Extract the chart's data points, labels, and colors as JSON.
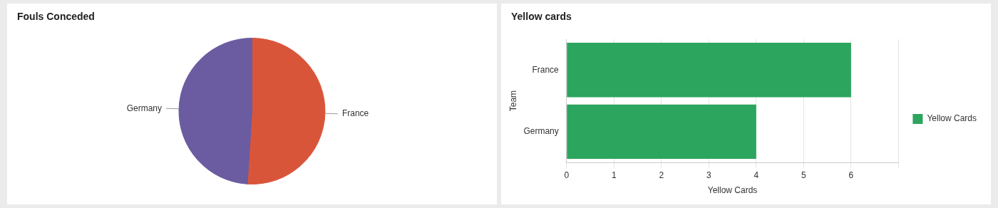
{
  "chart_data": [
    {
      "type": "pie",
      "title": "Fouls Conceded",
      "categories": [
        "France",
        "Germany"
      ],
      "values": [
        51,
        49
      ],
      "colors": [
        "#d9553a",
        "#6b5ba0"
      ]
    },
    {
      "type": "bar",
      "title": "Yellow cards",
      "orientation": "horizontal",
      "categories": [
        "France",
        "Germany"
      ],
      "series": [
        {
          "name": "Yellow Cards",
          "color": "#2ca55e",
          "values": [
            6,
            4
          ]
        }
      ],
      "xlabel": "Yellow Cards",
      "ylabel": "Team",
      "xlim": [
        0,
        7
      ],
      "xticks": [
        0,
        1,
        2,
        3,
        4,
        5,
        6,
        {
          "value": 7,
          "label": null
        }
      ],
      "grid": "x",
      "legend": "right"
    }
  ]
}
